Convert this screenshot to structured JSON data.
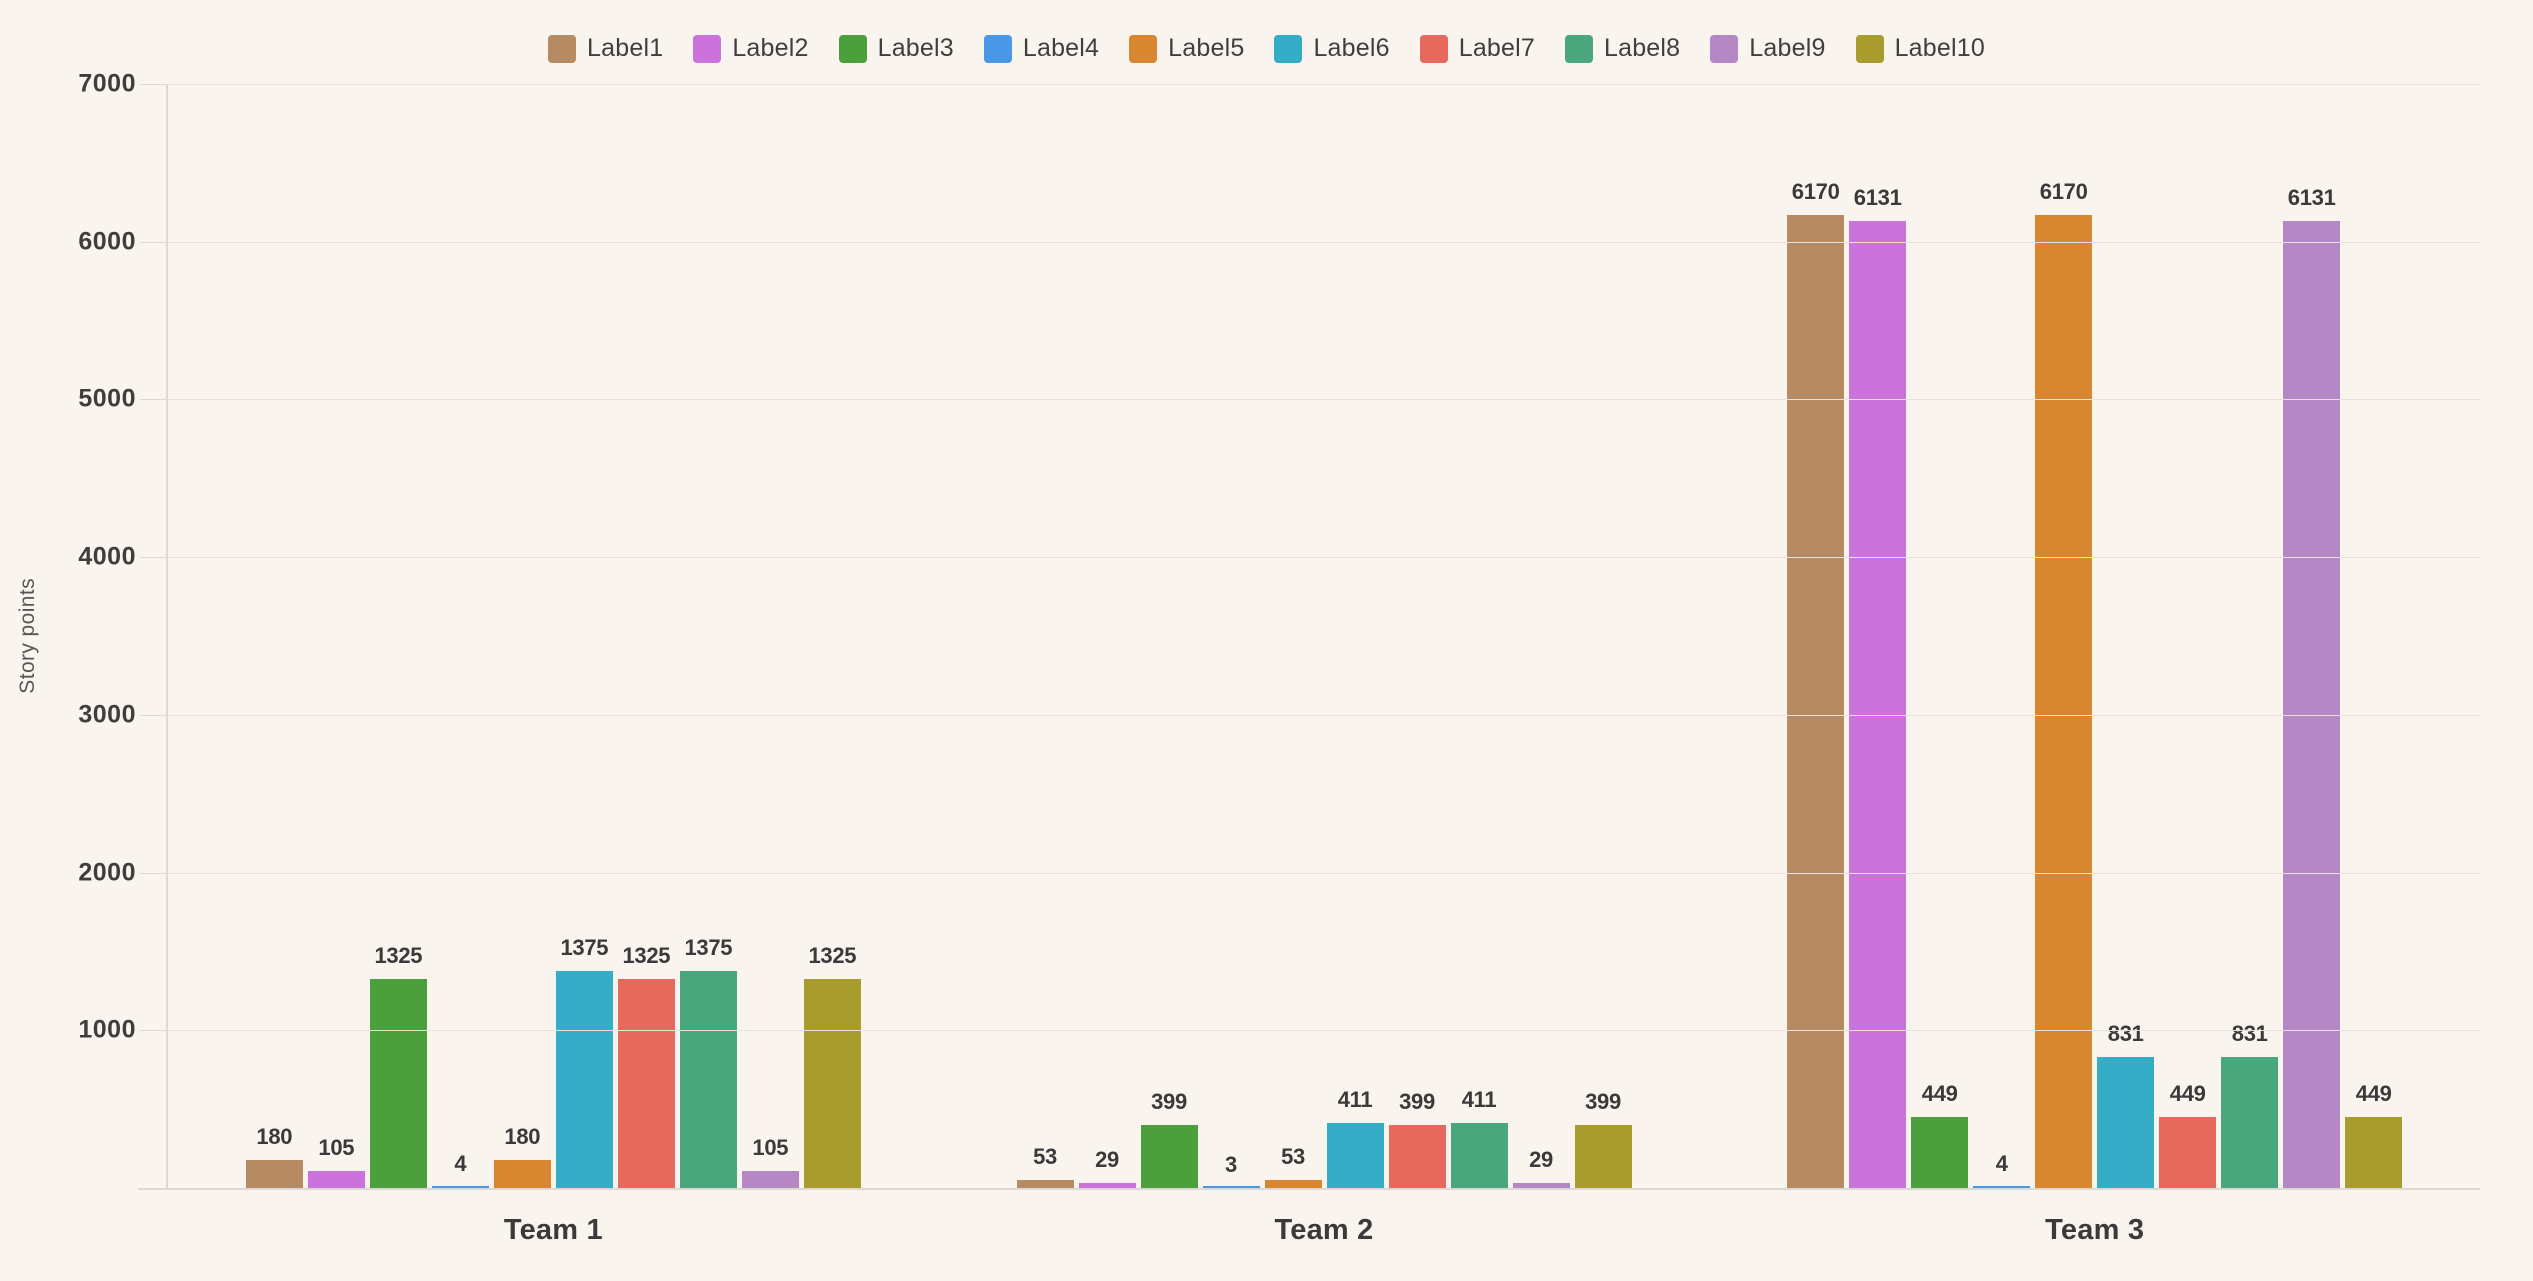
{
  "chart_data": {
    "type": "bar",
    "title": "",
    "ylabel": "Story points",
    "categories": [
      "Team 1",
      "Team 2",
      "Team 3"
    ],
    "series": [
      {
        "name": "Label1",
        "color": "#b68a62",
        "values": [
          180,
          53,
          6170
        ]
      },
      {
        "name": "Label2",
        "color": "#cc72dc",
        "values": [
          105,
          29,
          6131
        ]
      },
      {
        "name": "Label3",
        "color": "#4ba03d",
        "values": [
          1325,
          399,
          449
        ]
      },
      {
        "name": "Label4",
        "color": "#4a97e8",
        "values": [
          4,
          3,
          4
        ]
      },
      {
        "name": "Label5",
        "color": "#d8862f",
        "values": [
          180,
          53,
          6170
        ]
      },
      {
        "name": "Label6",
        "color": "#35adc6",
        "values": [
          1375,
          411,
          831
        ]
      },
      {
        "name": "Label7",
        "color": "#e6695d",
        "values": [
          1325,
          399,
          449
        ]
      },
      {
        "name": "Label8",
        "color": "#4aa67c",
        "values": [
          1375,
          411,
          831
        ]
      },
      {
        "name": "Label9",
        "color": "#b587c4",
        "values": [
          105,
          29,
          6131
        ]
      },
      {
        "name": "Label10",
        "color": "#a89c2e",
        "values": [
          1325,
          399,
          449
        ]
      }
    ],
    "ylim": [
      0,
      7000
    ],
    "yticks": [
      1000,
      2000,
      3000,
      4000,
      5000,
      6000,
      7000
    ],
    "grid": true,
    "legend_position": "top",
    "value_labels": true
  },
  "colors": {
    "background": "#faf4ef",
    "gridline": "#e7e2dd",
    "axis": "#ddd8d4",
    "label_text": "#3a3a3a",
    "tick_text": "#3e3e3e",
    "axis_title_text": "#565656"
  }
}
